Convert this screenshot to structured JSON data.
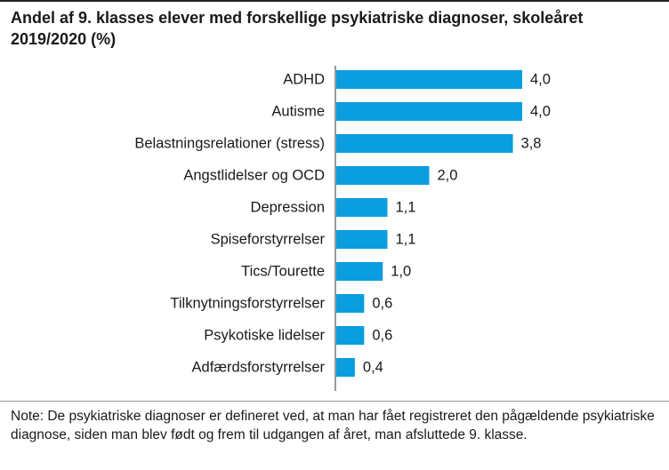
{
  "chart_data": {
    "type": "bar",
    "orientation": "horizontal",
    "title": "Andel af 9. klasses elever med forskellige psykiatriske diagnoser, skoleåret 2019/2020 (%)",
    "categories": [
      "ADHD",
      "Autisme",
      "Belastningsrelationer (stress)",
      "Angstlidelser og OCD",
      "Depression",
      "Spiseforstyrrelser",
      "Tics/Tourette",
      "Tilknytningsforstyrrelser",
      "Psykotiske lidelser",
      "Adfærdsforstyrrelser"
    ],
    "values": [
      4.0,
      4.0,
      3.8,
      2.0,
      1.1,
      1.1,
      1.0,
      0.6,
      0.6,
      0.4
    ],
    "value_labels": [
      "4,0",
      "4,0",
      "3,8",
      "2,0",
      "1,1",
      "1,1",
      "1,0",
      "0,6",
      "0,6",
      "0,4"
    ],
    "xlim": [
      0,
      4.0
    ],
    "xlabel": "",
    "ylabel": "",
    "grid": false,
    "bar_color": "#0a9de0",
    "note": "Note: De psykiatriske diagnoser er defineret ved, at man har fået registreret den pågældende psykiatriske diagnose, siden man blev født og frem til udgangen af året, man afsluttede 9. klasse."
  }
}
